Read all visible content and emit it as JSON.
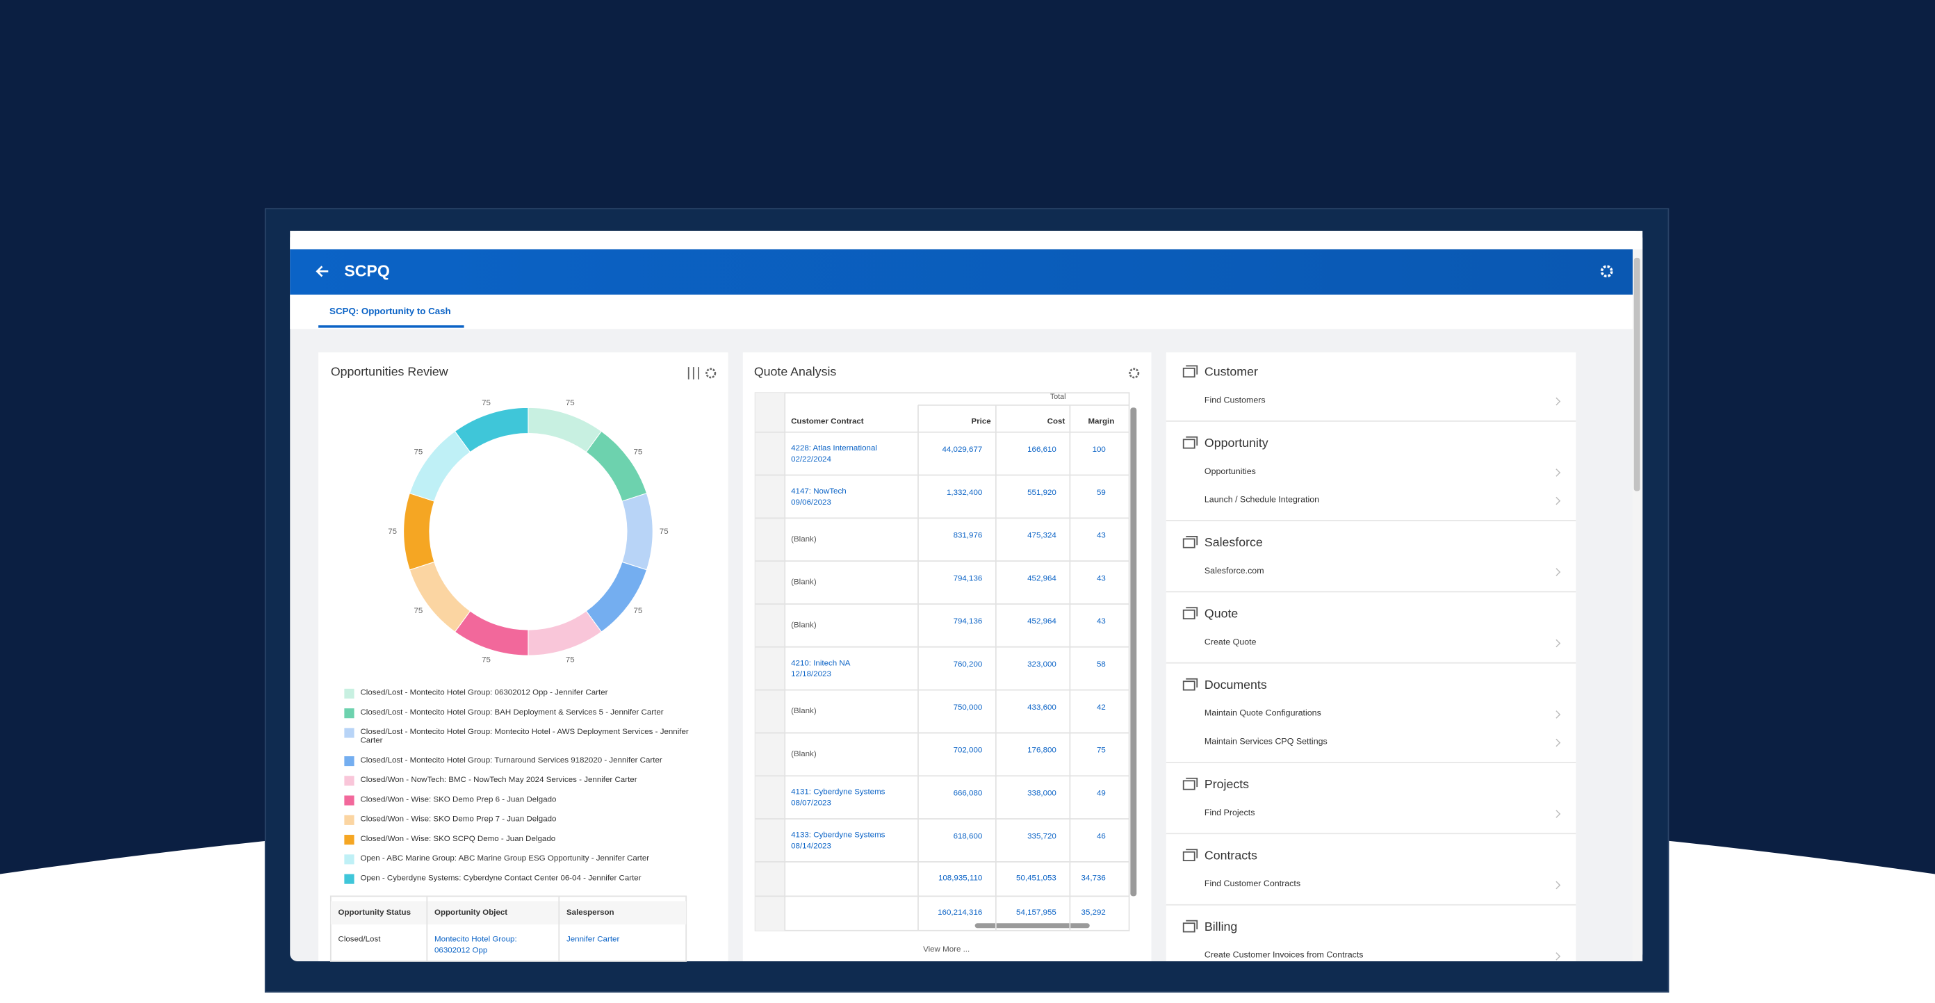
{
  "header": {
    "title": "SCPQ"
  },
  "tab": "SCPQ: Opportunity to Cash",
  "opportunities": {
    "title": "Opportunities Review",
    "donut": {
      "values": [
        75,
        75,
        75,
        75,
        75,
        75,
        75,
        75,
        75,
        75
      ],
      "colors": [
        "#c8f0e1",
        "#6dd2ae",
        "#b8d4f7",
        "#74aef0",
        "#f9c6d9",
        "#f2689b",
        "#fbd5a2",
        "#f5a623",
        "#bff0f6",
        "#3fc6d9"
      ]
    },
    "legend": [
      "Closed/Lost - Montecito Hotel Group: 06302012 Opp - Jennifer Carter",
      "Closed/Lost - Montecito Hotel Group: BAH Deployment & Services 5 - Jennifer Carter",
      "Closed/Lost - Montecito Hotel Group: Montecito Hotel - AWS Deployment Services - Jennifer Carter",
      "Closed/Lost - Montecito Hotel Group: Turnaround Services 9182020 - Jennifer Carter",
      "Closed/Won - NowTech: BMC - NowTech May 2024 Services - Jennifer Carter",
      "Closed/Won - Wise: SKO Demo Prep 6 - Juan Delgado",
      "Closed/Won - Wise: SKO Demo Prep 7 - Juan Delgado",
      "Closed/Won - Wise: SKO SCPQ Demo - Juan Delgado",
      "Open - ABC Marine Group: ABC Marine Group ESG Opportunity - Jennifer Carter",
      "Open - Cyberdyne Systems: Cyberdyne Contact Center 06-04 - Jennifer Carter"
    ],
    "table": {
      "columns": [
        "Opportunity Status",
        "Opportunity Object",
        "Salesperson"
      ],
      "rows": [
        [
          [
            "Closed/Lost"
          ],
          [
            "Montecito Hotel Group:",
            "06302012 Opp"
          ],
          [
            "Jennifer Carter"
          ]
        ]
      ]
    }
  },
  "quote": {
    "title": "Quote Analysis",
    "group": "Total",
    "columns": [
      "Customer Contract",
      "Price",
      "Cost",
      "Margin"
    ],
    "rows": [
      [
        [
          "4228: Atlas International",
          "02/22/2024"
        ],
        "44,029,677",
        "166,610",
        "100"
      ],
      [
        [
          "4147: NowTech",
          "09/06/2023"
        ],
        "1,332,400",
        "551,920",
        "59"
      ],
      [
        [
          "(Blank)"
        ],
        "831,976",
        "475,324",
        "43"
      ],
      [
        [
          "(Blank)"
        ],
        "794,136",
        "452,964",
        "43"
      ],
      [
        [
          "(Blank)"
        ],
        "794,136",
        "452,964",
        "43"
      ],
      [
        [
          "4210: Initech NA",
          "12/18/2023"
        ],
        "760,200",
        "323,000",
        "58"
      ],
      [
        [
          "(Blank)"
        ],
        "750,000",
        "433,600",
        "42"
      ],
      [
        [
          "(Blank)"
        ],
        "702,000",
        "176,800",
        "75"
      ],
      [
        [
          "4131: Cyberdyne Systems",
          "08/07/2023"
        ],
        "666,080",
        "338,000",
        "49"
      ],
      [
        [
          "4133: Cyberdyne Systems",
          "08/14/2023"
        ],
        "618,600",
        "335,720",
        "46"
      ]
    ],
    "totals": [
      [
        "108,935,110",
        "50,451,053",
        "34,736"
      ],
      [
        "160,214,316",
        "54,157,955",
        "35,292"
      ]
    ],
    "view_more": "View More ..."
  },
  "menu": [
    {
      "title": "Customer",
      "items": [
        "Find Customers"
      ]
    },
    {
      "title": "Opportunity",
      "items": [
        "Opportunities",
        "Launch / Schedule Integration"
      ]
    },
    {
      "title": "Salesforce",
      "items": [
        "Salesforce.com"
      ]
    },
    {
      "title": "Quote",
      "items": [
        "Create Quote"
      ]
    },
    {
      "title": "Documents",
      "items": [
        "Maintain Quote Configurations",
        "Maintain Services CPQ Settings"
      ]
    },
    {
      "title": "Projects",
      "items": [
        "Find Projects"
      ]
    },
    {
      "title": "Contracts",
      "items": [
        "Find Customer Contracts"
      ]
    },
    {
      "title": "Billing",
      "items": [
        "Create Customer Invoices from Contracts"
      ]
    }
  ]
}
